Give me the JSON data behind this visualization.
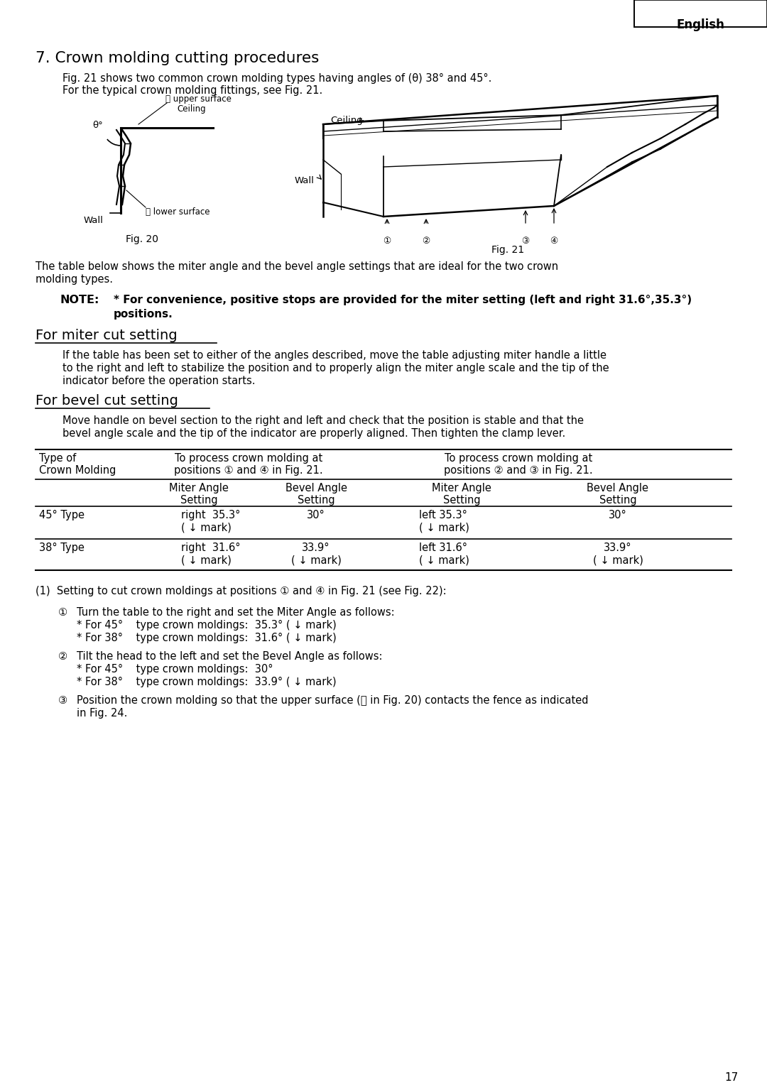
{
  "page_number": "17",
  "header_text": "English",
  "section_title": "7. Crown molding cutting procedures",
  "section_intro_line1": "Fig. 21 shows two common crown molding types having angles of (θ) 38° and 45°.",
  "section_intro_line2": "For the typical crown molding fittings, see Fig. 21.",
  "fig20_caption": "Fig. 20",
  "fig21_caption": "Fig. 21",
  "note_label": "NOTE:",
  "note_bold": "* For convenience, positive stops are provided for the miter setting (left and right 31.6°,35.3°)",
  "note_bold2": "positions.",
  "miter_heading": "For miter cut setting",
  "miter_text_line1": "If the table has been set to either of the angles described, move the table adjusting miter handle a little",
  "miter_text_line2": "to the right and left to stabilize the position and to properly align the miter angle scale and the tip of the",
  "miter_text_line3": "indicator before the operation starts.",
  "bevel_heading": "For bevel cut setting",
  "bevel_text_line1": "Move handle on bevel section to the right and left and check that the position is stable and that the",
  "bevel_text_line2": "bevel angle scale and the tip of the indicator are properly aligned. Then tighten the clamp lever.",
  "table_col1_h1": "Type of",
  "table_col1_h2": "Crown Molding",
  "table_col2_h1": "To process crown molding at",
  "table_col2_h2": "positions ① and ④ in Fig. 21.",
  "table_col3_h1": "To process crown molding at",
  "table_col3_h2": "positions ② and ③ in Fig. 21.",
  "sub_miter": "Miter Angle",
  "sub_miter2": "Setting",
  "sub_bevel": "Bevel Angle",
  "sub_bevel2": "Setting",
  "row1_type": "45° Type",
  "row1_m1a": "right  35.3°",
  "row1_m1b": "( ↓ mark)",
  "row1_b1": "30°",
  "row1_m2a": "left 35.3°",
  "row1_m2b": "( ↓ mark)",
  "row1_b2": "30°",
  "row2_type": "38° Type",
  "row2_m1a": "right  31.6°",
  "row2_m1b": "( ↓ mark)",
  "row2_b1a": "33.9°",
  "row2_b1b": "( ↓ mark)",
  "row2_m2a": "left 31.6°",
  "row2_m2b": "( ↓ mark)",
  "row2_b2a": "33.9°",
  "row2_b2b": "( ↓ mark)",
  "setting1": "(1)  Setting to cut crown moldings at positions ① and ④ in Fig. 21 (see Fig. 22):",
  "s1_num": "①",
  "s1_l1": "Turn the table to the right and set the Miter Angle as follows:",
  "s1_l2": "   * For 45°    type crown moldings:  35.3° ( ↓ mark)",
  "s1_l3": "   * For 38°    type crown moldings:  31.6° ( ↓ mark)",
  "s2_num": "②",
  "s2_l1": "Tilt the head to the left and set the Bevel Angle as follows:",
  "s2_l2": "   * For 45°    type crown moldings:  30°",
  "s2_l3": "   * For 38°    type crown moldings:  33.9° ( ↓ mark)",
  "s3_num": "③",
  "s3_l1": "Position the crown molding so that the upper surface (Ⓐ in Fig. 20) contacts the fence as indicated",
  "s3_l2": "in Fig. 24.",
  "bg_color": "#ffffff",
  "text_color": "#000000"
}
